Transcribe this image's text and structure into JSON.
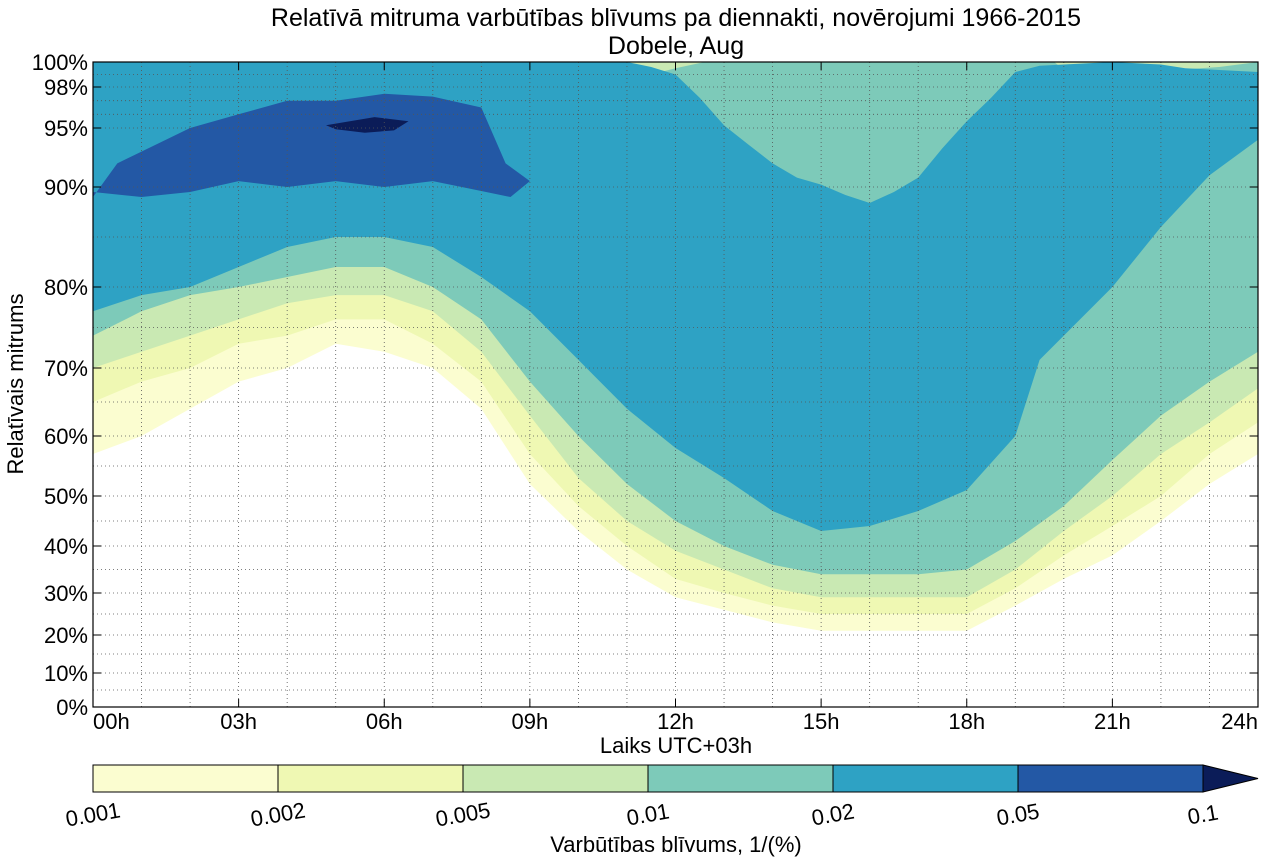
{
  "chart_data": {
    "type": "contour",
    "title": "Relatīvā mitruma varbūtības blīvums pa diennakti, novērojumi 1966-2015",
    "subtitle": "Dobele, Aug",
    "xlabel": "Laiks UTC+03h",
    "ylabel": "Relatīvais mitrums",
    "xlim": [
      0,
      24
    ],
    "x_ticks": [
      0,
      3,
      6,
      9,
      12,
      15,
      18,
      21,
      24
    ],
    "x_tick_labels": [
      "00h",
      "03h",
      "06h",
      "09h",
      "12h",
      "15h",
      "18h",
      "21h",
      "24h"
    ],
    "y_ticks": [
      0,
      10,
      20,
      30,
      40,
      50,
      60,
      70,
      80,
      90,
      95,
      98,
      100
    ],
    "y_tick_labels": [
      "0%",
      "10%",
      "20%",
      "30%",
      "40%",
      "50%",
      "60%",
      "70%",
      "80%",
      "90%",
      "95%",
      "98%",
      "100%"
    ],
    "grid": true,
    "colorbar": {
      "label": "Varbūtības blīvums, 1/(%)",
      "levels": [
        0.001,
        0.002,
        0.005,
        0.01,
        0.02,
        0.05,
        0.1
      ],
      "level_labels": [
        "0.001",
        "0.002",
        "0.005",
        "0.01",
        "0.02",
        "0.05",
        "0.1"
      ],
      "colors": [
        "#fbfdd0",
        "#eff8b3",
        "#c9e9b3",
        "#7dcab9",
        "#2ea2c4",
        "#2358a5",
        "#0b1c58"
      ],
      "extend": "max"
    },
    "contours": [
      {
        "level": 0.001,
        "color": "#fbfdd0",
        "points": [
          [
            0,
            57
          ],
          [
            1,
            60
          ],
          [
            2,
            64
          ],
          [
            3,
            68
          ],
          [
            4,
            70
          ],
          [
            5,
            73
          ],
          [
            6,
            72
          ],
          [
            7,
            70
          ],
          [
            8,
            64
          ],
          [
            9,
            52
          ],
          [
            10,
            43
          ],
          [
            11,
            35
          ],
          [
            12,
            29
          ],
          [
            13,
            26
          ],
          [
            14,
            23
          ],
          [
            15,
            21
          ],
          [
            16,
            21
          ],
          [
            17,
            21
          ],
          [
            18,
            21
          ],
          [
            19,
            27
          ],
          [
            20,
            33
          ],
          [
            21,
            38
          ],
          [
            22,
            45
          ],
          [
            23,
            52
          ],
          [
            24,
            57
          ],
          [
            24,
            100
          ],
          [
            0,
            100
          ]
        ]
      },
      {
        "level": 0.002,
        "color": "#eff8b3",
        "points": [
          [
            0,
            65
          ],
          [
            1,
            68
          ],
          [
            2,
            70
          ],
          [
            3,
            73
          ],
          [
            4,
            74
          ],
          [
            5,
            76
          ],
          [
            6,
            76
          ],
          [
            7,
            73
          ],
          [
            8,
            68
          ],
          [
            9,
            57
          ],
          [
            10,
            48
          ],
          [
            11,
            40
          ],
          [
            12,
            33
          ],
          [
            13,
            30
          ],
          [
            14,
            27
          ],
          [
            15,
            25
          ],
          [
            16,
            25
          ],
          [
            17,
            25
          ],
          [
            18,
            25
          ],
          [
            19,
            31
          ],
          [
            20,
            38
          ],
          [
            21,
            44
          ],
          [
            22,
            50
          ],
          [
            23,
            57
          ],
          [
            24,
            62
          ],
          [
            24,
            100
          ],
          [
            0,
            100
          ]
        ]
      },
      {
        "level": 0.005,
        "color": "#c9e9b3",
        "points": [
          [
            0,
            70
          ],
          [
            1,
            72
          ],
          [
            2,
            74
          ],
          [
            3,
            76
          ],
          [
            4,
            78
          ],
          [
            5,
            79
          ],
          [
            6,
            79
          ],
          [
            7,
            77
          ],
          [
            8,
            72
          ],
          [
            9,
            63
          ],
          [
            10,
            53
          ],
          [
            11,
            45
          ],
          [
            12,
            39
          ],
          [
            13,
            35
          ],
          [
            14,
            31
          ],
          [
            15,
            29
          ],
          [
            16,
            29
          ],
          [
            17,
            29
          ],
          [
            18,
            29
          ],
          [
            19,
            35
          ],
          [
            20,
            43
          ],
          [
            21,
            50
          ],
          [
            22,
            57
          ],
          [
            23,
            62
          ],
          [
            24,
            67
          ],
          [
            24,
            100
          ],
          [
            0,
            100
          ]
        ]
      },
      {
        "level": 0.01,
        "color": "#7dcab9",
        "points": [
          [
            0,
            74
          ],
          [
            1,
            77
          ],
          [
            2,
            79
          ],
          [
            3,
            80
          ],
          [
            4,
            81
          ],
          [
            5,
            82
          ],
          [
            6,
            82
          ],
          [
            7,
            80
          ],
          [
            8,
            76
          ],
          [
            9,
            68
          ],
          [
            10,
            60
          ],
          [
            11,
            52
          ],
          [
            12,
            45
          ],
          [
            13,
            40
          ],
          [
            14,
            36
          ],
          [
            15,
            34
          ],
          [
            16,
            34
          ],
          [
            17,
            34
          ],
          [
            18,
            35
          ],
          [
            19,
            41
          ],
          [
            20,
            48
          ],
          [
            21,
            56
          ],
          [
            22,
            63
          ],
          [
            23,
            68
          ],
          [
            24,
            72
          ],
          [
            24,
            100
          ],
          [
            23.2,
            99.6
          ],
          [
            22,
            99.3
          ],
          [
            21,
            99.3
          ],
          [
            20,
            99.4
          ],
          [
            19.8,
            100
          ],
          [
            12.6,
            100
          ],
          [
            12,
            99.5
          ],
          [
            11.5,
            99
          ],
          [
            11,
            99.7
          ],
          [
            10.5,
            100
          ],
          [
            0,
            100
          ]
        ]
      },
      {
        "level": 0.02,
        "color": "#2ea2c4",
        "points": [
          [
            0,
            77
          ],
          [
            1,
            79
          ],
          [
            2,
            80
          ],
          [
            3,
            82
          ],
          [
            4,
            84
          ],
          [
            5,
            85
          ],
          [
            6,
            85
          ],
          [
            7,
            84
          ],
          [
            8,
            81
          ],
          [
            9,
            77
          ],
          [
            10,
            71
          ],
          [
            11,
            64
          ],
          [
            12,
            58
          ],
          [
            13,
            53
          ],
          [
            14,
            47
          ],
          [
            15,
            43
          ],
          [
            16,
            44
          ],
          [
            17,
            47
          ],
          [
            18,
            51
          ],
          [
            19,
            60
          ],
          [
            19.5,
            71
          ],
          [
            20,
            74
          ],
          [
            21,
            80
          ],
          [
            22,
            86
          ],
          [
            23,
            91
          ],
          [
            24,
            94
          ],
          [
            24,
            99.2
          ],
          [
            23,
            99.4
          ],
          [
            22.5,
            99.5
          ],
          [
            22,
            99.8
          ],
          [
            21,
            100
          ],
          [
            19.5,
            99.7
          ],
          [
            19,
            99.2
          ],
          [
            18.5,
            97.2
          ],
          [
            18,
            95.5
          ],
          [
            17.5,
            93.3
          ],
          [
            17,
            90.8
          ],
          [
            16.5,
            89.5
          ],
          [
            16,
            88.4
          ],
          [
            15.5,
            89.2
          ],
          [
            15,
            90.2
          ],
          [
            14.5,
            90.8
          ],
          [
            14,
            92
          ],
          [
            13.5,
            93.6
          ],
          [
            13,
            95.2
          ],
          [
            12.5,
            97.2
          ],
          [
            12,
            99
          ],
          [
            11.5,
            99.6
          ],
          [
            11,
            100
          ],
          [
            0,
            100
          ]
        ]
      },
      {
        "level": 0.05,
        "color": "#2358a5",
        "points": [
          [
            0,
            89
          ],
          [
            0.5,
            92
          ],
          [
            1,
            93
          ],
          [
            2,
            95
          ],
          [
            3,
            96
          ],
          [
            4,
            97
          ],
          [
            5,
            97
          ],
          [
            6,
            97.5
          ],
          [
            7,
            97.3
          ],
          [
            8,
            96.5
          ],
          [
            8.5,
            92
          ],
          [
            9,
            90.5
          ],
          [
            8.6,
            89
          ],
          [
            8,
            89.6
          ],
          [
            7,
            90.5
          ],
          [
            6,
            90
          ],
          [
            5,
            90.5
          ],
          [
            4,
            90
          ],
          [
            3,
            90.5
          ],
          [
            2,
            89.5
          ],
          [
            1,
            89
          ],
          [
            0,
            89.5
          ]
        ]
      },
      {
        "level": 0.1,
        "color": "#0b1c58",
        "points": [
          [
            4.8,
            95.2
          ],
          [
            5.8,
            95.8
          ],
          [
            6.5,
            95.5
          ],
          [
            6.2,
            94.8
          ],
          [
            5.6,
            94.6
          ],
          [
            5,
            94.9
          ]
        ]
      }
    ]
  }
}
